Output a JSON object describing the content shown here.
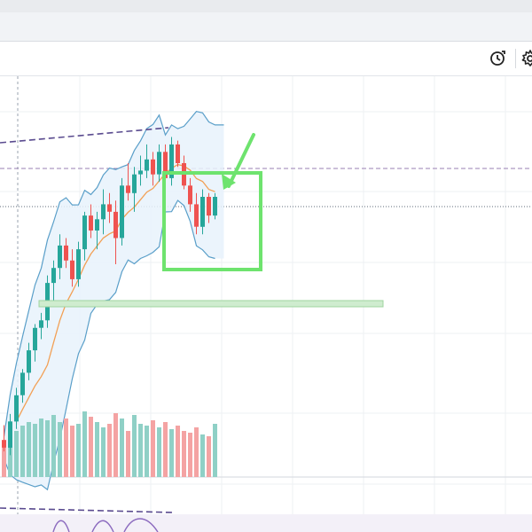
{
  "toolbar": {
    "icons": [
      "replay-clock-icon",
      "settings-gear-icon"
    ]
  },
  "colors": {
    "up": "#26a69a",
    "down": "#ef5350",
    "up_volume": "#8fd0c6",
    "down_volume": "#f4a3a3",
    "bollinger": "#5a9fc9",
    "bollinger_fill": "#e7f2fb",
    "moving_average": "#f2a055",
    "annotation": "#6ee36e",
    "support_zone": "#cfeccf",
    "trendline": "#5a4b8f"
  },
  "chart_data": {
    "type": "candlestick",
    "candles": [
      {
        "o": 104,
        "h": 112,
        "l": 98,
        "c": 100
      },
      {
        "o": 100,
        "h": 118,
        "l": 96,
        "c": 114
      },
      {
        "o": 114,
        "h": 132,
        "l": 110,
        "c": 128
      },
      {
        "o": 128,
        "h": 142,
        "l": 124,
        "c": 140
      },
      {
        "o": 140,
        "h": 156,
        "l": 136,
        "c": 152
      },
      {
        "o": 152,
        "h": 166,
        "l": 146,
        "c": 164
      },
      {
        "o": 164,
        "h": 172,
        "l": 158,
        "c": 168
      },
      {
        "o": 168,
        "h": 192,
        "l": 164,
        "c": 188
      },
      {
        "o": 188,
        "h": 200,
        "l": 178,
        "c": 196
      },
      {
        "o": 196,
        "h": 214,
        "l": 190,
        "c": 208
      },
      {
        "o": 208,
        "h": 212,
        "l": 196,
        "c": 200
      },
      {
        "o": 200,
        "h": 206,
        "l": 186,
        "c": 190
      },
      {
        "o": 190,
        "h": 210,
        "l": 186,
        "c": 206
      },
      {
        "o": 206,
        "h": 226,
        "l": 200,
        "c": 224
      },
      {
        "o": 224,
        "h": 230,
        "l": 212,
        "c": 216
      },
      {
        "o": 216,
        "h": 226,
        "l": 206,
        "c": 222
      },
      {
        "o": 222,
        "h": 238,
        "l": 214,
        "c": 230
      },
      {
        "o": 230,
        "h": 236,
        "l": 220,
        "c": 226
      },
      {
        "o": 226,
        "h": 232,
        "l": 198,
        "c": 212
      },
      {
        "o": 212,
        "h": 244,
        "l": 208,
        "c": 240
      },
      {
        "o": 240,
        "h": 252,
        "l": 232,
        "c": 236
      },
      {
        "o": 236,
        "h": 250,
        "l": 226,
        "c": 246
      },
      {
        "o": 246,
        "h": 256,
        "l": 240,
        "c": 248
      },
      {
        "o": 248,
        "h": 262,
        "l": 244,
        "c": 254
      },
      {
        "o": 254,
        "h": 258,
        "l": 240,
        "c": 246
      },
      {
        "o": 246,
        "h": 262,
        "l": 242,
        "c": 258
      },
      {
        "o": 258,
        "h": 262,
        "l": 238,
        "c": 244
      },
      {
        "o": 244,
        "h": 266,
        "l": 240,
        "c": 262
      },
      {
        "o": 262,
        "h": 264,
        "l": 250,
        "c": 252
      },
      {
        "o": 252,
        "h": 256,
        "l": 238,
        "c": 240
      },
      {
        "o": 240,
        "h": 244,
        "l": 226,
        "c": 230
      },
      {
        "o": 230,
        "h": 236,
        "l": 214,
        "c": 218
      },
      {
        "o": 218,
        "h": 238,
        "l": 214,
        "c": 234
      },
      {
        "o": 234,
        "h": 236,
        "l": 220,
        "c": 224
      },
      {
        "o": 224,
        "h": 236,
        "l": 222,
        "c": 234
      }
    ],
    "volume": [
      42,
      38,
      52,
      58,
      62,
      60,
      66,
      64,
      70,
      62,
      66,
      58,
      60,
      74,
      68,
      62,
      56,
      60,
      72,
      66,
      52,
      70,
      60,
      58,
      64,
      56,
      62,
      54,
      58,
      52,
      50,
      56,
      48,
      46,
      60
    ],
    "moving_average_start": 2
  }
}
